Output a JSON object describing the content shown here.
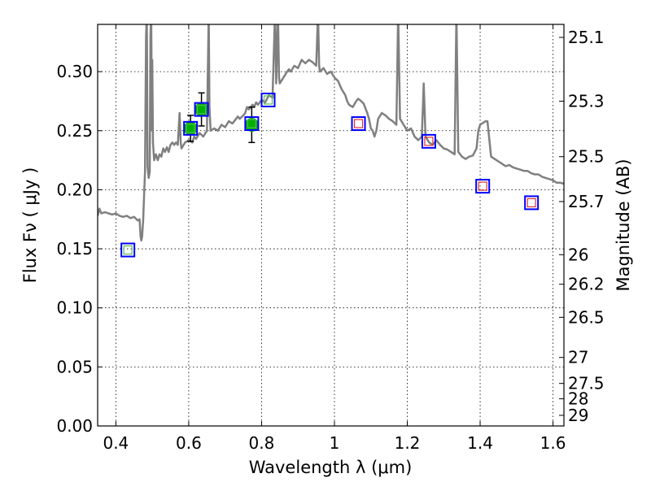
{
  "chart_data": {
    "type": "scatter",
    "xlabel": "Wavelength  λ (μm)",
    "ylabel": "Flux  Fν  ( μJy )",
    "ylabel_right": "Magnitude (AB)",
    "xlim": [
      0.35,
      1.63
    ],
    "ylim": [
      0.0,
      0.34
    ],
    "grid": true,
    "x_ticks": [
      {
        "value": 0.4,
        "label": "0.4"
      },
      {
        "value": 0.6,
        "label": "0.6"
      },
      {
        "value": 0.8,
        "label": "0.8"
      },
      {
        "value": 1.0,
        "label": "1"
      },
      {
        "value": 1.2,
        "label": "1.2"
      },
      {
        "value": 1.4,
        "label": "1.4"
      },
      {
        "value": 1.6,
        "label": "1.6"
      }
    ],
    "y_ticks": [
      {
        "value": 0.0,
        "label": "0.00"
      },
      {
        "value": 0.05,
        "label": "0.05"
      },
      {
        "value": 0.1,
        "label": "0.10"
      },
      {
        "value": 0.15,
        "label": "0.15"
      },
      {
        "value": 0.2,
        "label": "0.20"
      },
      {
        "value": 0.25,
        "label": "0.25"
      },
      {
        "value": 0.3,
        "label": "0.30"
      }
    ],
    "y2_ticks": [
      {
        "flux": 0.329,
        "label": "25.1"
      },
      {
        "flux": 0.275,
        "label": "25.3"
      },
      {
        "flux": 0.228,
        "label": "25.5"
      },
      {
        "flux": 0.19,
        "label": "25.7"
      },
      {
        "flux": 0.145,
        "label": "26"
      },
      {
        "flux": 0.12,
        "label": "26.2"
      },
      {
        "flux": 0.092,
        "label": "26.5"
      },
      {
        "flux": 0.058,
        "label": "27"
      },
      {
        "flux": 0.036,
        "label": "27.5"
      },
      {
        "flux": 0.023,
        "label": "28"
      },
      {
        "flux": 0.009,
        "label": "29"
      }
    ],
    "series": [
      {
        "kind": "model-spectrum",
        "color": "#808080",
        "points": [
          [
            0.35,
            0.178
          ],
          [
            0.355,
            0.184
          ],
          [
            0.36,
            0.18
          ],
          [
            0.37,
            0.181
          ],
          [
            0.38,
            0.18
          ],
          [
            0.39,
            0.179
          ],
          [
            0.4,
            0.18
          ],
          [
            0.41,
            0.178
          ],
          [
            0.42,
            0.177
          ],
          [
            0.43,
            0.178
          ],
          [
            0.44,
            0.176
          ],
          [
            0.45,
            0.177
          ],
          [
            0.46,
            0.174
          ],
          [
            0.465,
            0.175
          ],
          [
            0.468,
            0.16
          ],
          [
            0.47,
            0.157
          ],
          [
            0.472,
            0.16
          ],
          [
            0.475,
            0.175
          ],
          [
            0.478,
            0.2
          ],
          [
            0.48,
            0.215
          ],
          [
            0.483,
            0.33
          ],
          [
            0.485,
            0.35
          ],
          [
            0.487,
            0.22
          ],
          [
            0.49,
            0.21
          ],
          [
            0.493,
            0.215
          ],
          [
            0.495,
            0.33
          ],
          [
            0.497,
            0.35
          ],
          [
            0.499,
            0.25
          ],
          [
            0.5,
            0.31
          ],
          [
            0.502,
            0.24
          ],
          [
            0.505,
            0.225
          ],
          [
            0.51,
            0.23
          ],
          [
            0.515,
            0.225
          ],
          [
            0.52,
            0.23
          ],
          [
            0.525,
            0.228
          ],
          [
            0.53,
            0.235
          ],
          [
            0.535,
            0.232
          ],
          [
            0.54,
            0.236
          ],
          [
            0.545,
            0.232
          ],
          [
            0.55,
            0.238
          ],
          [
            0.555,
            0.24
          ],
          [
            0.56,
            0.238
          ],
          [
            0.565,
            0.24
          ],
          [
            0.57,
            0.238
          ],
          [
            0.575,
            0.265
          ],
          [
            0.578,
            0.24
          ],
          [
            0.58,
            0.235
          ],
          [
            0.59,
            0.24
          ],
          [
            0.6,
            0.242
          ],
          [
            0.61,
            0.24
          ],
          [
            0.615,
            0.245
          ],
          [
            0.62,
            0.243
          ],
          [
            0.63,
            0.248
          ],
          [
            0.64,
            0.245
          ],
          [
            0.65,
            0.25
          ],
          [
            0.655,
            0.35
          ],
          [
            0.657,
            0.27
          ],
          [
            0.66,
            0.25
          ],
          [
            0.67,
            0.252
          ],
          [
            0.68,
            0.25
          ],
          [
            0.69,
            0.255
          ],
          [
            0.7,
            0.253
          ],
          [
            0.71,
            0.258
          ],
          [
            0.72,
            0.256
          ],
          [
            0.73,
            0.26
          ],
          [
            0.735,
            0.262
          ],
          [
            0.74,
            0.26
          ],
          [
            0.75,
            0.263
          ],
          [
            0.755,
            0.265
          ],
          [
            0.76,
            0.27
          ],
          [
            0.765,
            0.268
          ],
          [
            0.77,
            0.27
          ],
          [
            0.775,
            0.272
          ],
          [
            0.78,
            0.27
          ],
          [
            0.785,
            0.274
          ],
          [
            0.79,
            0.272
          ],
          [
            0.8,
            0.276
          ],
          [
            0.81,
            0.274
          ],
          [
            0.82,
            0.28
          ],
          [
            0.83,
            0.278
          ],
          [
            0.835,
            0.33
          ],
          [
            0.837,
            0.35
          ],
          [
            0.84,
            0.29
          ],
          [
            0.845,
            0.35
          ],
          [
            0.848,
            0.295
          ],
          [
            0.85,
            0.29
          ],
          [
            0.86,
            0.295
          ],
          [
            0.87,
            0.3
          ],
          [
            0.875,
            0.302
          ],
          [
            0.88,
            0.3
          ],
          [
            0.89,
            0.305
          ],
          [
            0.9,
            0.303
          ],
          [
            0.91,
            0.31
          ],
          [
            0.92,
            0.307
          ],
          [
            0.93,
            0.31
          ],
          [
            0.94,
            0.308
          ],
          [
            0.95,
            0.305
          ],
          [
            0.955,
            0.35
          ],
          [
            0.958,
            0.305
          ],
          [
            0.96,
            0.3
          ],
          [
            0.97,
            0.303
          ],
          [
            0.98,
            0.298
          ],
          [
            0.99,
            0.3
          ],
          [
            1.0,
            0.295
          ],
          [
            1.01,
            0.292
          ],
          [
            1.02,
            0.285
          ],
          [
            1.03,
            0.28
          ],
          [
            1.035,
            0.275
          ],
          [
            1.04,
            0.272
          ],
          [
            1.05,
            0.27
          ],
          [
            1.06,
            0.275
          ],
          [
            1.065,
            0.277
          ],
          [
            1.07,
            0.276
          ],
          [
            1.08,
            0.273
          ],
          [
            1.09,
            0.265
          ],
          [
            1.095,
            0.26
          ],
          [
            1.1,
            0.252
          ],
          [
            1.105,
            0.25
          ],
          [
            1.11,
            0.245
          ],
          [
            1.115,
            0.25
          ],
          [
            1.12,
            0.26
          ],
          [
            1.13,
            0.265
          ],
          [
            1.14,
            0.263
          ],
          [
            1.15,
            0.26
          ],
          [
            1.16,
            0.258
          ],
          [
            1.17,
            0.255
          ],
          [
            1.175,
            0.35
          ],
          [
            1.18,
            0.26
          ],
          [
            1.19,
            0.255
          ],
          [
            1.2,
            0.25
          ],
          [
            1.21,
            0.252
          ],
          [
            1.22,
            0.245
          ],
          [
            1.23,
            0.242
          ],
          [
            1.24,
            0.245
          ],
          [
            1.245,
            0.29
          ],
          [
            1.25,
            0.245
          ],
          [
            1.26,
            0.24
          ],
          [
            1.27,
            0.238
          ],
          [
            1.28,
            0.242
          ],
          [
            1.29,
            0.238
          ],
          [
            1.3,
            0.235
          ],
          [
            1.31,
            0.234
          ],
          [
            1.32,
            0.232
          ],
          [
            1.33,
            0.23
          ],
          [
            1.335,
            0.35
          ],
          [
            1.34,
            0.232
          ],
          [
            1.35,
            0.228
          ],
          [
            1.36,
            0.226
          ],
          [
            1.37,
            0.228
          ],
          [
            1.38,
            0.229
          ],
          [
            1.39,
            0.235
          ],
          [
            1.395,
            0.25
          ],
          [
            1.4,
            0.255
          ],
          [
            1.41,
            0.257
          ],
          [
            1.415,
            0.258
          ],
          [
            1.42,
            0.258
          ],
          [
            1.43,
            0.228
          ],
          [
            1.44,
            0.226
          ],
          [
            1.45,
            0.224
          ],
          [
            1.46,
            0.222
          ],
          [
            1.47,
            0.22
          ],
          [
            1.48,
            0.221
          ],
          [
            1.49,
            0.219
          ],
          [
            1.5,
            0.218
          ],
          [
            1.51,
            0.217
          ],
          [
            1.52,
            0.216
          ],
          [
            1.53,
            0.216
          ],
          [
            1.54,
            0.214
          ],
          [
            1.55,
            0.213
          ],
          [
            1.56,
            0.213
          ],
          [
            1.57,
            0.211
          ],
          [
            1.58,
            0.21
          ],
          [
            1.59,
            0.209
          ],
          [
            1.6,
            0.208
          ],
          [
            1.61,
            0.206
          ],
          [
            1.62,
            0.206
          ],
          [
            1.63,
            0.205
          ]
        ]
      },
      {
        "kind": "measured-points",
        "marker": "circle",
        "color": "#00b000",
        "points": [
          {
            "x": 0.605,
            "y": 0.252,
            "yerr": 0.011
          },
          {
            "x": 0.635,
            "y": 0.268,
            "yerr": 0.014
          },
          {
            "x": 0.773,
            "y": 0.255,
            "yerr": 0.015
          }
        ]
      },
      {
        "kind": "synthetic-photometry",
        "marker": "square",
        "edge_color": "#0000ff",
        "points": [
          {
            "x": 0.433,
            "y": 0.149,
            "inner": "#55bb55"
          },
          {
            "x": 0.605,
            "y": 0.252,
            "inner": "#55bb55"
          },
          {
            "x": 0.635,
            "y": 0.268,
            "inner": "#55bb55"
          },
          {
            "x": 0.773,
            "y": 0.256,
            "inner": "#55bb55"
          },
          {
            "x": 0.818,
            "y": 0.276,
            "inner": "#55bb55"
          },
          {
            "x": 1.066,
            "y": 0.256,
            "inner": "#dd3333"
          },
          {
            "x": 1.259,
            "y": 0.241,
            "inner": "#dd3333"
          },
          {
            "x": 1.407,
            "y": 0.203,
            "inner": "#dd3333"
          },
          {
            "x": 1.541,
            "y": 0.189,
            "inner": "#dd3333"
          }
        ]
      }
    ]
  }
}
